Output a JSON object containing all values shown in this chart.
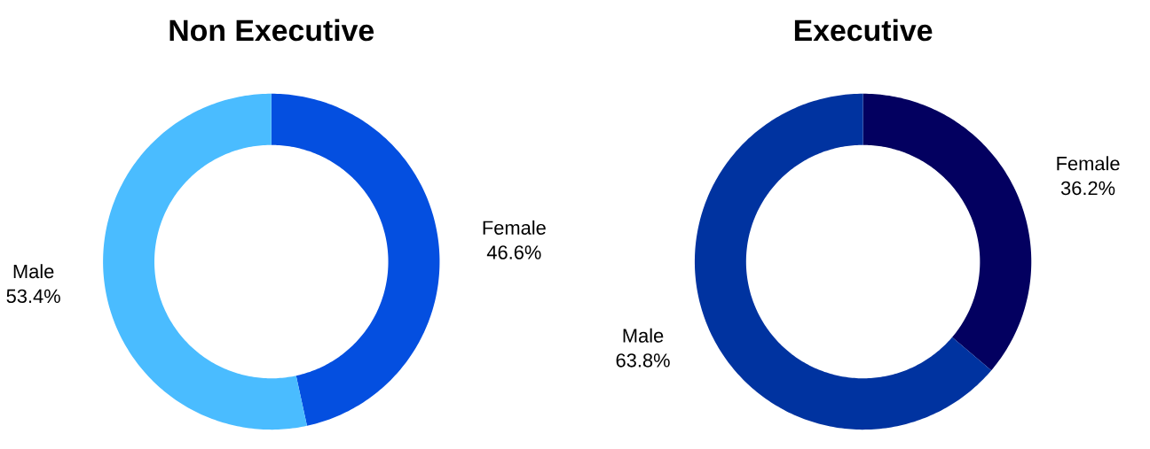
{
  "chart_data": [
    {
      "type": "donut",
      "title": "Non Executive",
      "categories": [
        "Female",
        "Male"
      ],
      "values": [
        46.6,
        53.4
      ],
      "value_labels": [
        "46.6%",
        "53.4%"
      ],
      "colors": [
        "#044fe0",
        "#4abcff"
      ]
    },
    {
      "type": "donut",
      "title": "Executive",
      "categories": [
        "Female",
        "Male"
      ],
      "values": [
        36.2,
        63.8
      ],
      "value_labels": [
        "36.2%",
        "63.8%"
      ],
      "colors": [
        "#030060",
        "#0033a0"
      ]
    }
  ]
}
